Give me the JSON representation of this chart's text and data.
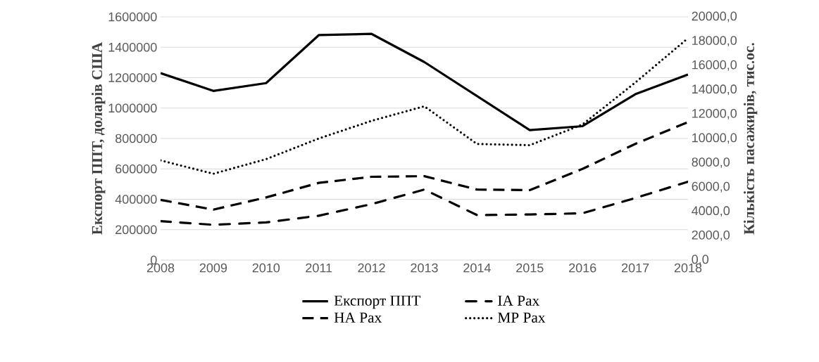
{
  "chart_data": {
    "type": "line",
    "categories": [
      "2008",
      "2009",
      "2010",
      "2011",
      "2012",
      "2013",
      "2014",
      "2015",
      "2016",
      "2017",
      "2018"
    ],
    "ylabel": "Експорт ППТ, доларів США",
    "y2label": "Кількість пасажирів, тис.ос.",
    "ylim": [
      0,
      1600000
    ],
    "yticks": [
      0,
      200000,
      400000,
      600000,
      800000,
      1000000,
      1200000,
      1400000,
      1600000
    ],
    "y2lim": [
      0,
      20000
    ],
    "y2ticks": [
      {
        "value": 0,
        "label": "0,0"
      },
      {
        "value": 2000,
        "label": "2000,0"
      },
      {
        "value": 4000,
        "label": "4000,0"
      },
      {
        "value": 6000,
        "label": "6000,0"
      },
      {
        "value": 8000,
        "label": "8000,0"
      },
      {
        "value": 10000,
        "label": "10000,0"
      },
      {
        "value": 12000,
        "label": "12000,0"
      },
      {
        "value": 14000,
        "label": "14000,0"
      },
      {
        "value": 16000,
        "label": "16000,0"
      },
      {
        "value": 18000,
        "label": "18000,0"
      },
      {
        "value": 20000,
        "label": "20000,0"
      }
    ],
    "grid": "y",
    "legend": "bottom",
    "series": [
      {
        "name": "Експорт ППТ",
        "color": "#000000",
        "line_style": "solid",
        "values": [
          1230000,
          1113000,
          1164000,
          1480000,
          1488000,
          1303000,
          1079000,
          855000,
          881000,
          1091000,
          1221000
        ]
      },
      {
        "name": "IA Pax",
        "color": "#000000",
        "line_style": "dashdot",
        "axis": "y2",
        "values": [
          3200,
          2900,
          3100,
          3650,
          4600,
          5800,
          3700,
          3750,
          3850,
          5100,
          6450
        ]
      },
      {
        "name": "HA Pax",
        "color": "#000000",
        "line_style": "dashed",
        "axis": "y2",
        "values": [
          4950,
          4150,
          5150,
          6350,
          6850,
          6900,
          5800,
          5750,
          7500,
          9550,
          11350
        ]
      },
      {
        "name": "MP Pax",
        "color": "#000000",
        "line_style": "dotted",
        "axis": "y2",
        "values": [
          8200,
          7100,
          8300,
          10000,
          11450,
          12650,
          9550,
          9450,
          11150,
          14600,
          18250
        ]
      }
    ]
  }
}
